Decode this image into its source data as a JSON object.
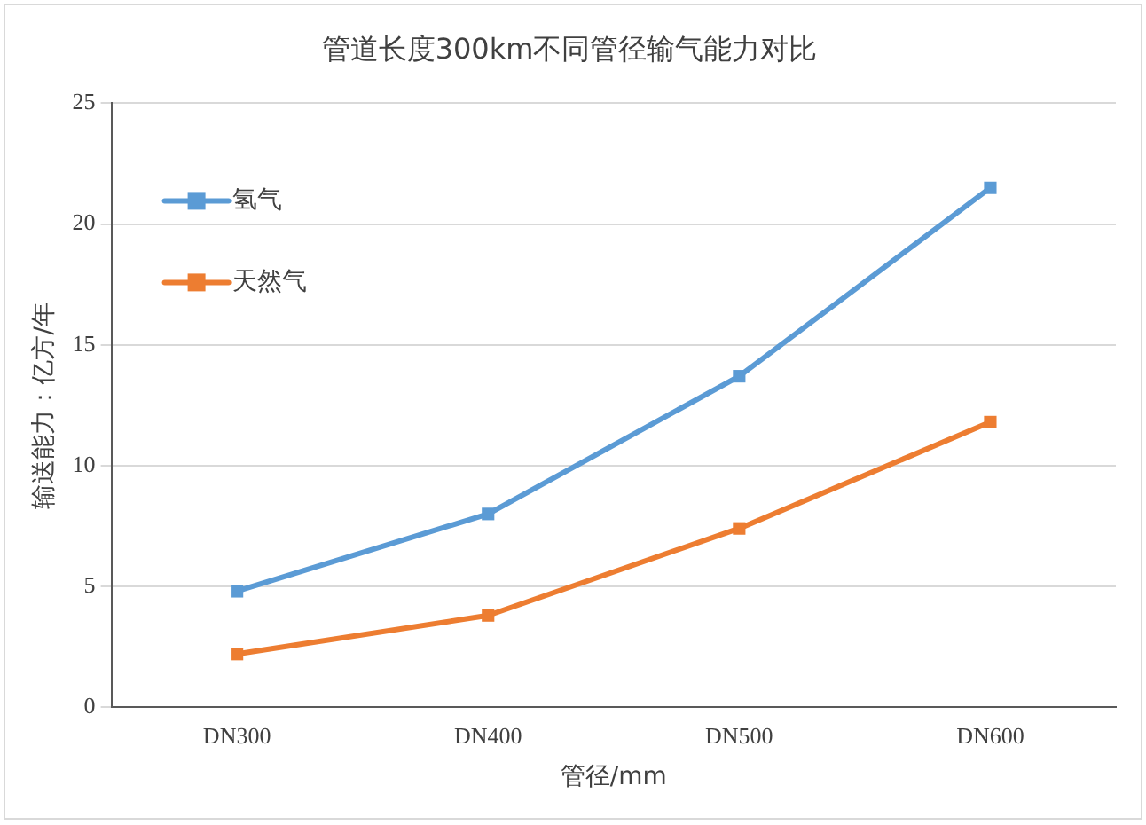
{
  "chart_data": {
    "type": "line",
    "title": "管道长度300km不同管径输气能力对比",
    "xlabel": "管径/mm",
    "ylabel": "输送能力：亿方/年",
    "categories": [
      "DN300",
      "DN400",
      "DN500",
      "DN600"
    ],
    "series": [
      {
        "name": "氢气",
        "color": "#5b9bd5",
        "values": [
          4.8,
          8.0,
          13.7,
          21.5
        ]
      },
      {
        "name": "天然气",
        "color": "#ed7d31",
        "values": [
          2.2,
          3.8,
          7.4,
          11.8
        ]
      }
    ],
    "ylim": [
      0,
      25
    ],
    "yticks": [
      0,
      5,
      10,
      15,
      20,
      25
    ],
    "grid": "y",
    "legend": "top left",
    "marker": "square",
    "line_style": "solid"
  }
}
